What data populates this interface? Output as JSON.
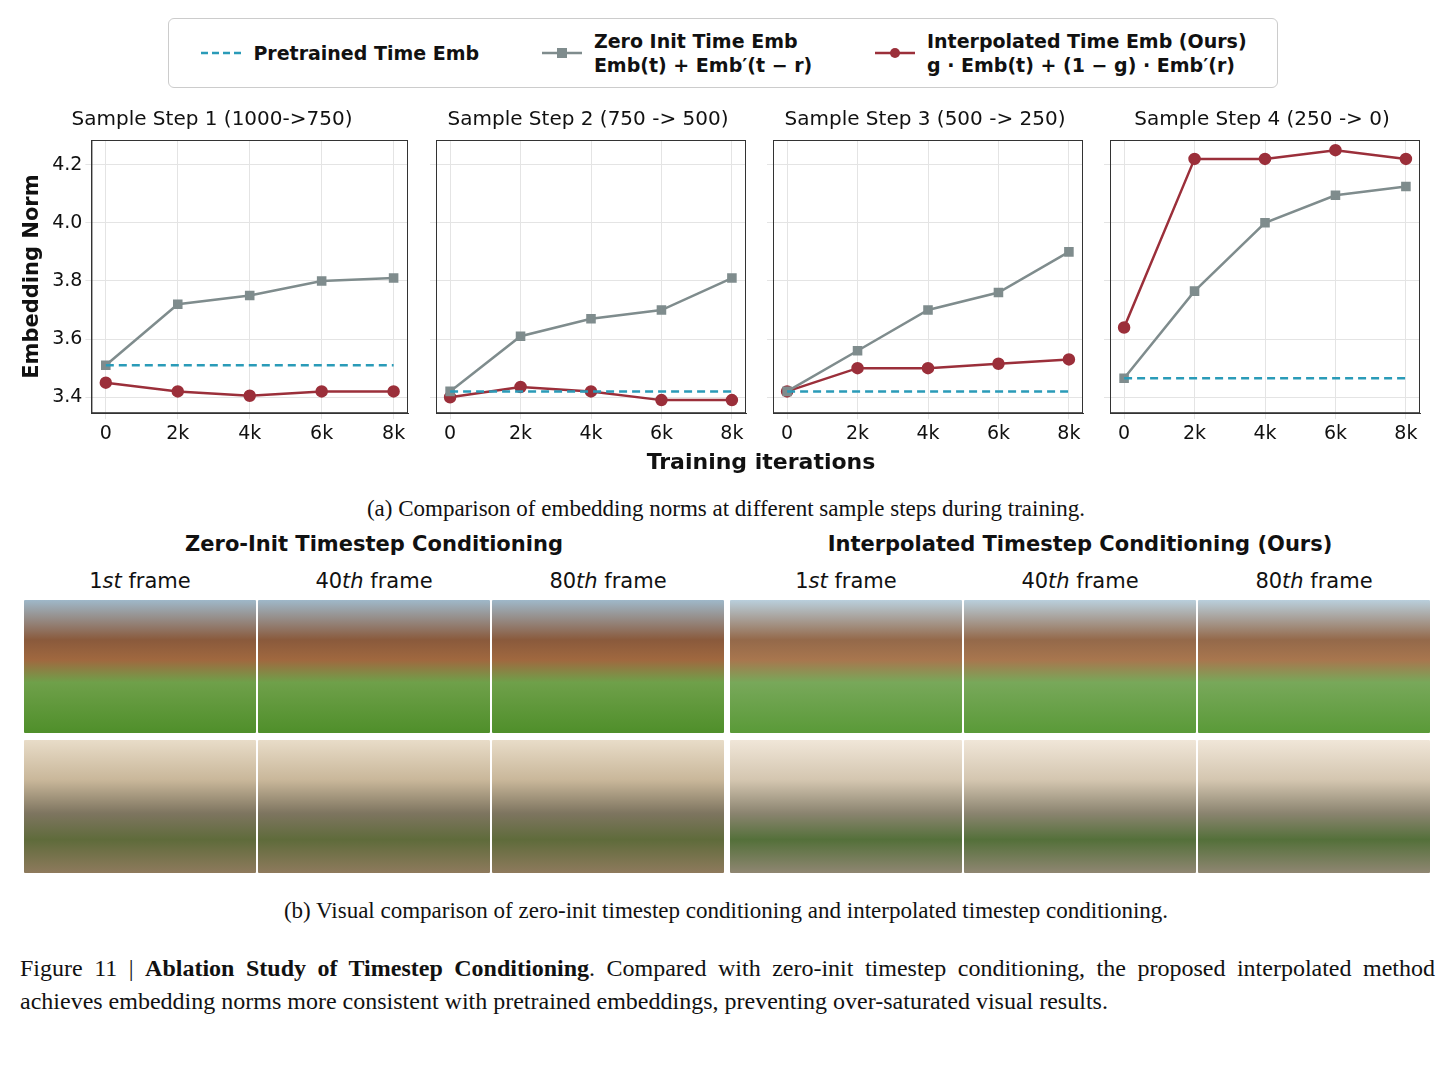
{
  "chart_data": [
    {
      "type": "line",
      "title": "Sample Step 1 (1000->750)",
      "y_label": "Embedding Norm",
      "x": [
        0,
        2000,
        4000,
        6000,
        8000
      ],
      "series": [
        {
          "name": "Pretrained Time Emb",
          "color": "#2a9bb8",
          "line_style": "dashed",
          "values": [
            3.51,
            3.51,
            3.51,
            3.51,
            3.51
          ]
        },
        {
          "name": "Zero Init Time Emb\nEmb(t) + Emb′(t − r)",
          "color": "#7f8c8d",
          "line_style": "solid",
          "marker": "square",
          "values": [
            3.51,
            3.72,
            3.75,
            3.8,
            3.81
          ]
        },
        {
          "name": "Interpolated Time Emb (Ours)\ng · Emb(t) + (1 − g) · Emb′(r)",
          "color": "#9b2f3a",
          "line_style": "solid",
          "marker": "circle",
          "values": [
            3.45,
            3.42,
            3.405,
            3.42,
            3.42
          ]
        }
      ],
      "xlim": [
        -400,
        8400
      ],
      "xticks": [
        0,
        {
          "value": 2000,
          "label": "2k"
        },
        {
          "value": 4000,
          "label": "4k"
        },
        {
          "value": 6000,
          "label": "6k"
        },
        {
          "value": 8000,
          "label": "8k"
        }
      ],
      "ylim": [
        3.345,
        4.285
      ],
      "yticks": [
        3.4,
        3.6,
        3.8,
        {
          "value": 4,
          "label": "4.0"
        },
        4.2
      ],
      "grid": true
    },
    {
      "type": "line",
      "title": "Sample Step 2 (750 -> 500)",
      "x": [
        0,
        2000,
        4000,
        6000,
        8000
      ],
      "series": [
        {
          "name": "Pretrained Time Emb",
          "color": "#2a9bb8",
          "line_style": "dashed",
          "values": [
            3.42,
            3.42,
            3.42,
            3.42,
            3.42
          ]
        },
        {
          "name": "Zero Init Time Emb\nEmb(t) + Emb′(t − r)",
          "color": "#7f8c8d",
          "line_style": "solid",
          "marker": "square",
          "values": [
            3.42,
            3.61,
            3.67,
            3.7,
            3.81
          ]
        },
        {
          "name": "Interpolated Time Emb (Ours)\ng · Emb(t) + (1 − g) · Emb′(r)",
          "color": "#9b2f3a",
          "line_style": "solid",
          "marker": "circle",
          "values": [
            3.4,
            3.435,
            3.42,
            3.39,
            3.39
          ]
        }
      ],
      "xlim": [
        -400,
        8400
      ],
      "xticks": [
        0,
        {
          "value": 2000,
          "label": "2k"
        },
        {
          "value": 4000,
          "label": "4k"
        },
        {
          "value": 6000,
          "label": "6k"
        },
        {
          "value": 8000,
          "label": "8k"
        }
      ],
      "ylim": [
        3.345,
        4.285
      ],
      "yticks": [
        3.4,
        3.6,
        3.8,
        {
          "value": 4,
          "label": "4.0"
        },
        4.2
      ],
      "grid": true,
      "tick_labels": "x"
    },
    {
      "type": "line",
      "title": "Sample Step 3 (500 -> 250)",
      "x": [
        0,
        2000,
        4000,
        6000,
        8000
      ],
      "series": [
        {
          "name": "Pretrained Time Emb",
          "color": "#2a9bb8",
          "line_style": "dashed",
          "values": [
            3.42,
            3.42,
            3.42,
            3.42,
            3.42
          ]
        },
        {
          "name": "Zero Init Time Emb\nEmb(t) + Emb′(t − r)",
          "color": "#7f8c8d",
          "line_style": "solid",
          "marker": "square",
          "values": [
            3.42,
            3.56,
            3.7,
            3.76,
            3.9
          ]
        },
        {
          "name": "Interpolated Time Emb (Ours)\ng · Emb(t) + (1 − g) · Emb′(r)",
          "color": "#9b2f3a",
          "line_style": "solid",
          "marker": "circle",
          "values": [
            3.42,
            3.5,
            3.5,
            3.515,
            3.53
          ]
        }
      ],
      "xlim": [
        -400,
        8400
      ],
      "xticks": [
        0,
        {
          "value": 2000,
          "label": "2k"
        },
        {
          "value": 4000,
          "label": "4k"
        },
        {
          "value": 6000,
          "label": "6k"
        },
        {
          "value": 8000,
          "label": "8k"
        }
      ],
      "ylim": [
        3.345,
        4.285
      ],
      "yticks": [
        3.4,
        3.6,
        3.8,
        {
          "value": 4,
          "label": "4.0"
        },
        4.2
      ],
      "grid": true,
      "tick_labels": "x"
    },
    {
      "type": "line",
      "title": "Sample Step 4 (250 -> 0)",
      "x": [
        0,
        2000,
        4000,
        6000,
        8000
      ],
      "series": [
        {
          "name": "Pretrained Time Emb",
          "color": "#2a9bb8",
          "line_style": "dashed",
          "values": [
            3.465,
            3.465,
            3.465,
            3.465,
            3.465
          ]
        },
        {
          "name": "Zero Init Time Emb\nEmb(t) + Emb′(t − r)",
          "color": "#7f8c8d",
          "line_style": "solid",
          "marker": "square",
          "values": [
            3.465,
            3.765,
            4.0,
            4.095,
            4.125
          ]
        },
        {
          "name": "Interpolated Time Emb (Ours)\ng · Emb(t) + (1 − g) · Emb′(r)",
          "color": "#9b2f3a",
          "line_style": "solid",
          "marker": "circle",
          "values": [
            3.64,
            4.22,
            4.22,
            4.25,
            4.22
          ]
        }
      ],
      "xlim": [
        -400,
        8400
      ],
      "xticks": [
        0,
        {
          "value": 2000,
          "label": "2k"
        },
        {
          "value": 4000,
          "label": "4k"
        },
        {
          "value": 6000,
          "label": "6k"
        },
        {
          "value": 8000,
          "label": "8k"
        }
      ],
      "ylim": [
        3.345,
        4.285
      ],
      "yticks": [
        3.4,
        3.6,
        3.8,
        {
          "value": 4,
          "label": "4.0"
        },
        4.2
      ],
      "grid": true,
      "tick_labels": "x"
    }
  ],
  "x_label": "Training iterations",
  "caption_a": "(a) Comparison of embedding norms at different sample steps during training.",
  "comparison": [
    {
      "title": "Zero-Init Timestep Conditioning",
      "frames": [
        "1st frame",
        "40th frame",
        "80th frame"
      ]
    },
    {
      "title": "Interpolated Timestep Conditioning (Ours)",
      "frames": [
        "1st frame",
        "40th frame",
        "80th frame"
      ]
    }
  ],
  "caption_b": "(b) Visual comparison of zero-init timestep conditioning and interpolated timestep conditioning.",
  "figure_caption": {
    "label": "Figure 11 | ",
    "title": "Ablation Study of Timestep Conditioning",
    "text": ". Compared with zero-init timestep conditioning, the proposed interpolated method achieves embedding norms more consistent with pretrained embeddings, preventing over-saturated visual results."
  }
}
